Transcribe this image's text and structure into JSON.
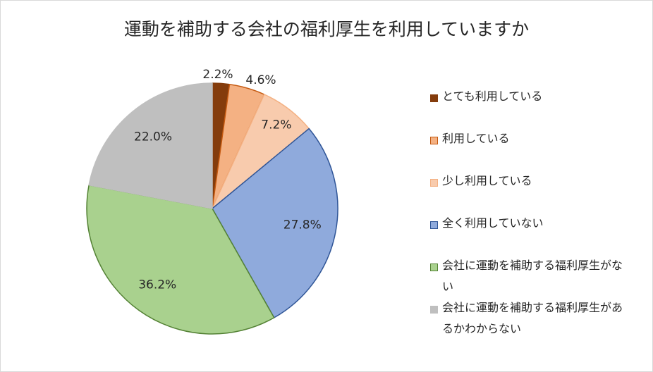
{
  "chart_data": {
    "type": "pie",
    "title": "運動を補助する会社の福利厚生を利用していますか",
    "categories": [
      "とても利用している",
      "利用している",
      "少し利用している",
      "全く利用していない",
      "会社に運動を補助する福利厚生がない",
      "会社に運動を補助する福利厚生があるかわからない"
    ],
    "values": [
      2.2,
      4.6,
      7.2,
      27.8,
      36.2,
      22.0
    ],
    "data_labels": [
      "2.2%",
      "4.6%",
      "7.2%",
      "27.8%",
      "36.2%",
      "22.0%"
    ],
    "colors": [
      "#843c0c",
      "#f4b183",
      "#f8cbad",
      "#8faadc",
      "#a9d18e",
      "#bfbfbf"
    ],
    "edge_colors": [
      "#843c0c",
      "#c55a11",
      "#f4b183",
      "#2f5597",
      "#548235",
      "#bfbfbf"
    ],
    "legend_position": "right",
    "start_angle": "12 o'clock",
    "direction": "clockwise"
  }
}
